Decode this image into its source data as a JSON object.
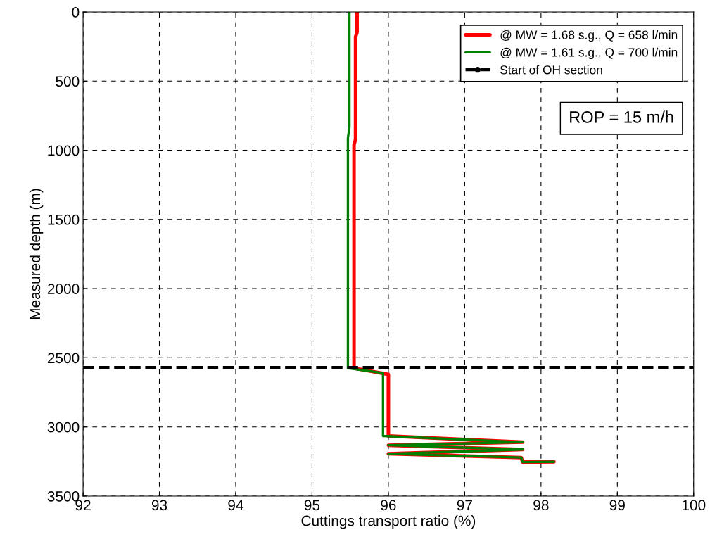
{
  "chart_data": {
    "type": "line",
    "xlabel": "Cuttings transport ratio (%)",
    "ylabel": "Measured depth (m)",
    "xlim": [
      92,
      100
    ],
    "xticks": [
      92,
      93,
      94,
      95,
      96,
      97,
      98,
      99,
      100
    ],
    "ylim": [
      3500,
      0
    ],
    "yticks": [
      0,
      500,
      1000,
      1500,
      2000,
      2500,
      3000,
      3500
    ],
    "grid": true,
    "legend": "top right",
    "marker": "none",
    "line_style": "solid",
    "series": [
      {
        "name": "@ MW = 1.68 s.g., Q = 658 l/min",
        "color": "#ff0000",
        "x": [
          95.59,
          95.59,
          95.57,
          95.57,
          95.55,
          95.55,
          96.0,
          96.0,
          97.76,
          96.0,
          97.76,
          96.0,
          97.74,
          97.76,
          98.17
        ],
        "values": [
          0,
          146,
          180,
          920,
          960,
          2575,
          2620,
          3065,
          3110,
          3132,
          3163,
          3194,
          3221,
          3254,
          3252
        ]
      },
      {
        "name": "@ MW = 1.61 s.g., Q = 700 l/min",
        "color": "#008000",
        "x": [
          95.49,
          95.49,
          95.47,
          95.47,
          95.93,
          95.93,
          97.76,
          96.0,
          97.76,
          96.0,
          97.74,
          97.76,
          98.17
        ],
        "values": [
          0,
          835,
          910,
          2575,
          2610,
          3065,
          3110,
          3132,
          3163,
          3194,
          3221,
          3254,
          3252
        ]
      }
    ],
    "ref_lines": [
      {
        "axis": "y",
        "value": 2570,
        "label": "Start of OH section",
        "color": "#000000",
        "line_style": "dashed"
      }
    ],
    "annotations": [
      "ROP = 15 m/h"
    ]
  }
}
